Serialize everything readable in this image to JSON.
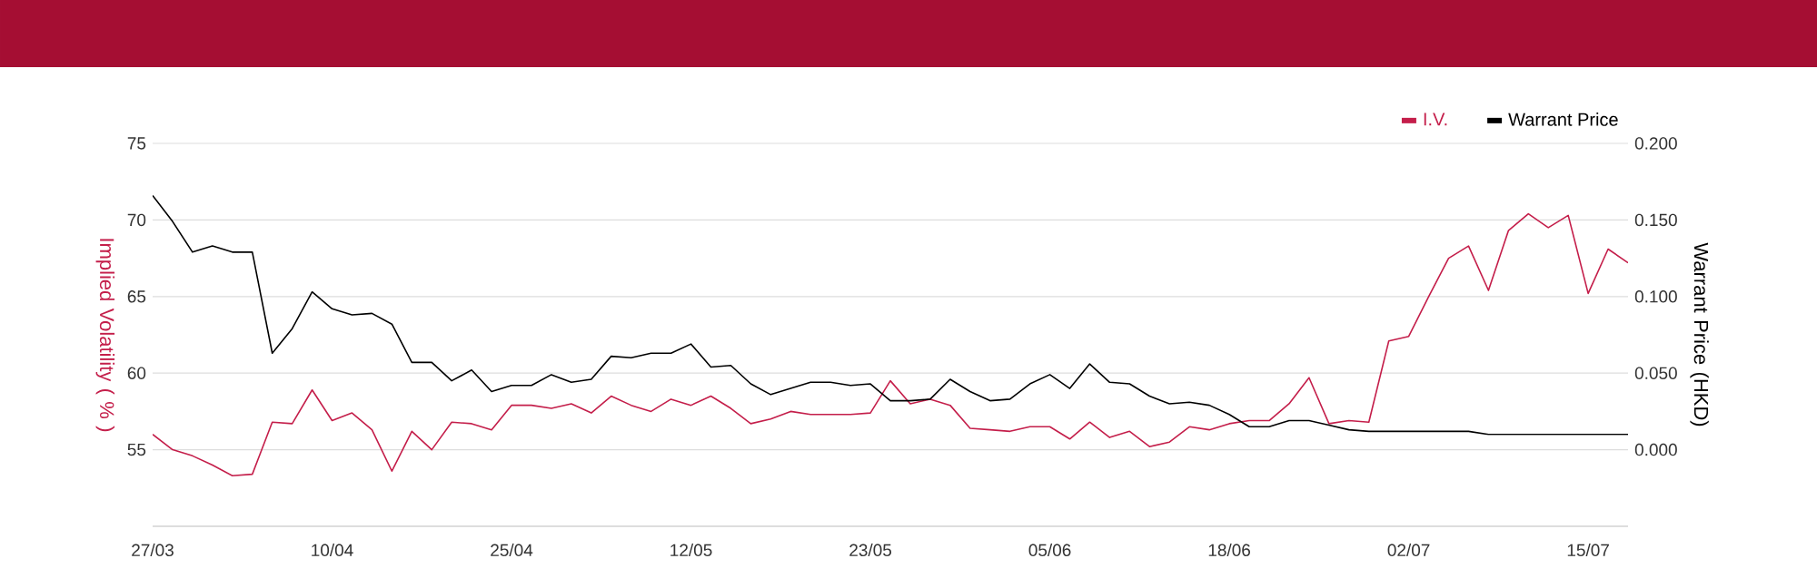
{
  "chart_data": {
    "type": "line",
    "categories": [
      "27/03",
      null,
      null,
      null,
      null,
      null,
      null,
      null,
      null,
      "10/04",
      null,
      null,
      null,
      null,
      null,
      null,
      null,
      null,
      "25/04",
      null,
      null,
      null,
      null,
      null,
      null,
      null,
      null,
      "12/05",
      null,
      null,
      null,
      null,
      null,
      null,
      null,
      null,
      "23/05",
      null,
      null,
      null,
      null,
      null,
      null,
      null,
      null,
      "05/06",
      null,
      null,
      null,
      null,
      null,
      null,
      null,
      null,
      "18/06",
      null,
      null,
      null,
      null,
      null,
      null,
      null,
      null,
      "02/07",
      null,
      null,
      null,
      null,
      null,
      null,
      null,
      null,
      "15/07",
      null,
      null
    ],
    "ylabel": "Implied Volatility ( % )",
    "y2label": "Warrant Price (HKD)",
    "ylim": [
      50,
      75
    ],
    "yticks": [
      55,
      60,
      65,
      70,
      75
    ],
    "y2lim": [
      -0.05,
      0.2
    ],
    "y2ticks": [
      {
        "value": 0,
        "label": "0.000"
      },
      {
        "value": 0.05,
        "label": "0.050"
      },
      {
        "value": 0.1,
        "label": "0.100"
      },
      {
        "value": 0.15,
        "label": "0.150"
      },
      {
        "value": 0.2,
        "label": "0.200"
      }
    ],
    "grid": "y",
    "legend": "top right",
    "series": [
      {
        "name": "I.V.",
        "color": "#c41e4a",
        "values": [
          56.0,
          55.0,
          54.6,
          54.0,
          53.3,
          53.4,
          56.8,
          56.7,
          58.9,
          56.9,
          57.4,
          56.3,
          53.6,
          56.2,
          55.0,
          56.8,
          56.7,
          56.3,
          57.9,
          57.9,
          57.7,
          58.0,
          57.4,
          58.5,
          57.9,
          57.5,
          58.3,
          57.9,
          58.5,
          57.7,
          56.7,
          57.0,
          57.5,
          57.3,
          57.3,
          57.3,
          57.4,
          59.5,
          58.0,
          58.3,
          57.9,
          56.4,
          56.3,
          56.2,
          56.5,
          56.5,
          55.7,
          56.8,
          55.8,
          56.2,
          55.2,
          55.5,
          56.5,
          56.3,
          56.7,
          56.9,
          56.9,
          58.0,
          59.7,
          56.7,
          56.9,
          56.8,
          62.1,
          62.4,
          65.0,
          67.5,
          68.3,
          65.4,
          69.3,
          70.4,
          69.5,
          70.3,
          65.2,
          68.1,
          67.2
        ]
      },
      {
        "name": "Warrant Price",
        "color": "#000000",
        "axis": "y2",
        "values": [
          0.166,
          0.149,
          0.129,
          0.133,
          0.129,
          0.129,
          0.063,
          0.079,
          0.103,
          0.092,
          0.088,
          0.089,
          0.082,
          0.057,
          0.057,
          0.045,
          0.052,
          0.038,
          0.042,
          0.042,
          0.049,
          0.044,
          0.046,
          0.061,
          0.06,
          0.063,
          0.063,
          0.069,
          0.054,
          0.055,
          0.043,
          0.036,
          0.04,
          0.044,
          0.044,
          0.042,
          0.043,
          0.032,
          0.032,
          0.033,
          0.046,
          0.038,
          0.032,
          0.033,
          0.043,
          0.049,
          0.04,
          0.056,
          0.044,
          0.043,
          0.035,
          0.03,
          0.031,
          0.029,
          0.023,
          0.015,
          0.015,
          0.019,
          0.019,
          0.016,
          0.013,
          0.012,
          0.012,
          0.012,
          0.012,
          0.012,
          0.012,
          0.01,
          0.01,
          0.01,
          0.01,
          0.01,
          0.01,
          0.01,
          0.01
        ]
      }
    ]
  }
}
